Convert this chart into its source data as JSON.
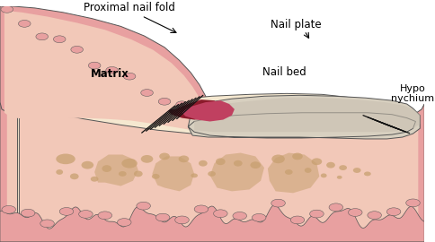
{
  "background_color": "#ffffff",
  "labels": {
    "proximal_nail_fold": "Proximal nail fold",
    "nail_plate": "Nail plate",
    "matrix": "Matrix",
    "nail_bed": "Nail bed",
    "hyponychium": "Hypo\nnychium"
  },
  "colors": {
    "skin_outer": "#e8a0a0",
    "skin_pink": "#d4788a",
    "skin_light": "#f2c8b8",
    "nail_plate_fill": "#d8d0c0",
    "nail_plate_top": "#c8bfb0",
    "matrix_dark": "#8b1a2a",
    "matrix_medium": "#c04060",
    "bone_fill": "#f5e8d0",
    "bone_pattern": "#c8a070",
    "nail_bed_fill": "#f0c8c0",
    "outline": "#555555",
    "text": "#000000",
    "lines_black": "#111111",
    "skin_mid": "#e8b8a8",
    "skin_deep_pink": "#d08080"
  }
}
